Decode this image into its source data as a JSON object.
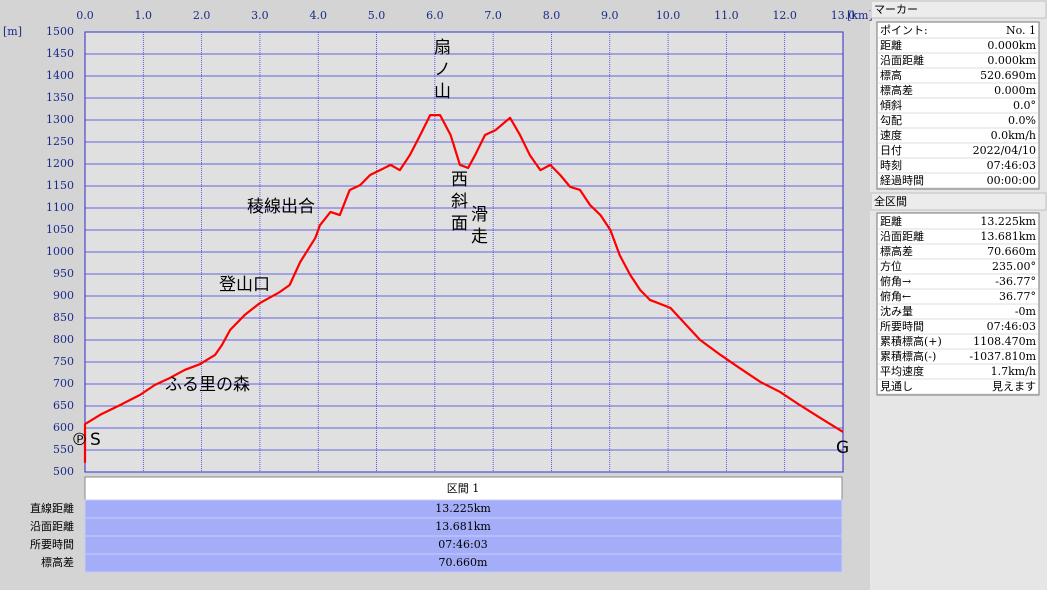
{
  "chart_data": {
    "type": "line",
    "xlabel": "[km]",
    "ylabel": "[m]",
    "xlim": [
      0,
      13
    ],
    "ylim": [
      500,
      1500
    ],
    "xticks": [
      {
        "value": 0,
        "label": "0.0"
      },
      {
        "value": 1,
        "label": "1.0"
      },
      {
        "value": 2,
        "label": "2.0"
      },
      {
        "value": 3,
        "label": "3.0"
      },
      {
        "value": 4,
        "label": "4.0"
      },
      {
        "value": 5,
        "label": "5.0"
      },
      {
        "value": 6,
        "label": "6.0"
      },
      {
        "value": 7,
        "label": "7.0"
      },
      {
        "value": 8,
        "label": "8.0"
      },
      {
        "value": 9,
        "label": "9.0"
      },
      {
        "value": 10,
        "label": "10.0"
      },
      {
        "value": 11,
        "label": "11.0"
      },
      {
        "value": 12,
        "label": "12.0"
      },
      {
        "value": 13,
        "label": "13.0"
      }
    ],
    "yticks": [
      500,
      550,
      600,
      650,
      700,
      750,
      800,
      850,
      900,
      950,
      1000,
      1050,
      1100,
      1150,
      1200,
      1250,
      1300,
      1350,
      1400,
      1450,
      1500
    ],
    "grid": true,
    "series": [
      {
        "color": "#ff0000",
        "x": [
          0,
          0,
          0.09,
          0.26,
          0.6,
          0.94,
          1.2,
          1.46,
          1.71,
          1.97,
          2.23,
          2.35,
          2.49,
          2.74,
          3.0,
          3.34,
          3.51,
          3.69,
          3.95,
          4.03,
          4.21,
          4.37,
          4.54,
          4.72,
          4.89,
          5.06,
          5.24,
          5.4,
          5.57,
          5.75,
          5.92,
          6.09,
          6.27,
          6.43,
          6.57,
          6.69,
          6.86,
          7.04,
          7.29,
          7.46,
          7.63,
          7.81,
          7.98,
          8.15,
          8.32,
          8.49,
          8.66,
          8.84,
          9.01,
          9.17,
          9.35,
          9.52,
          9.69,
          10.04,
          10.2,
          10.55,
          10.9,
          11.23,
          11.58,
          11.92,
          12.26,
          12.61,
          13.0
        ],
        "values": [
          521,
          609,
          616,
          630,
          652,
          675,
          698,
          714,
          732,
          745,
          766,
          789,
          823,
          857,
          884,
          909,
          925,
          977,
          1032,
          1061,
          1091,
          1084,
          1141,
          1152,
          1175,
          1186,
          1198,
          1186,
          1220,
          1266,
          1311,
          1311,
          1266,
          1198,
          1191,
          1220,
          1266,
          1277,
          1305,
          1266,
          1220,
          1186,
          1198,
          1175,
          1148,
          1141,
          1107,
          1084,
          1050,
          993,
          948,
          914,
          891,
          873,
          850,
          800,
          766,
          736,
          705,
          682,
          652,
          623,
          591
        ]
      }
    ],
    "annotations": [
      "扇ノ山",
      "西斜面",
      "滑走",
      "稜線出合",
      "登山口",
      "ふる里の森",
      "S",
      "G",
      "℗"
    ]
  },
  "section_table": {
    "title": "区間 1",
    "rows": [
      [
        "直線距離",
        "13.225km"
      ],
      [
        "沿面距離",
        "13.681km"
      ],
      [
        "所要時間",
        "07:46:03"
      ],
      [
        "標高差",
        "70.660m"
      ]
    ]
  },
  "marker_panel": {
    "title": "マーカー",
    "rows": [
      [
        "ポイント:",
        "No. 1"
      ],
      [
        "距離",
        "0.000km"
      ],
      [
        "沿面距離",
        "0.000km"
      ],
      [
        "標高",
        "520.690m"
      ],
      [
        "標高差",
        "0.000m"
      ],
      [
        "傾斜",
        "0.0°"
      ],
      [
        "勾配",
        "0.0%"
      ],
      [
        "速度",
        "0.0km/h"
      ],
      [
        "日付",
        "2022/04/10"
      ],
      [
        "時刻",
        "07:46:03"
      ],
      [
        "経過時間",
        "00:00:00"
      ]
    ]
  },
  "total_panel": {
    "title": "全区間",
    "rows": [
      [
        "距離",
        "13.225km"
      ],
      [
        "沿面距離",
        "13.681km"
      ],
      [
        "標高差",
        "70.660m"
      ],
      [
        "方位",
        "235.00°"
      ],
      [
        "俯角→",
        "-36.77°"
      ],
      [
        "俯角←",
        "36.77°"
      ],
      [
        "沈み量",
        "-0m"
      ],
      [
        "所要時間",
        "07:46:03"
      ],
      [
        "累積標高(+)",
        "1108.470m"
      ],
      [
        "累積標高(-)",
        "-1037.810m"
      ],
      [
        "平均速度",
        "1.7km/h"
      ],
      [
        "見通し",
        "見えます"
      ]
    ]
  }
}
